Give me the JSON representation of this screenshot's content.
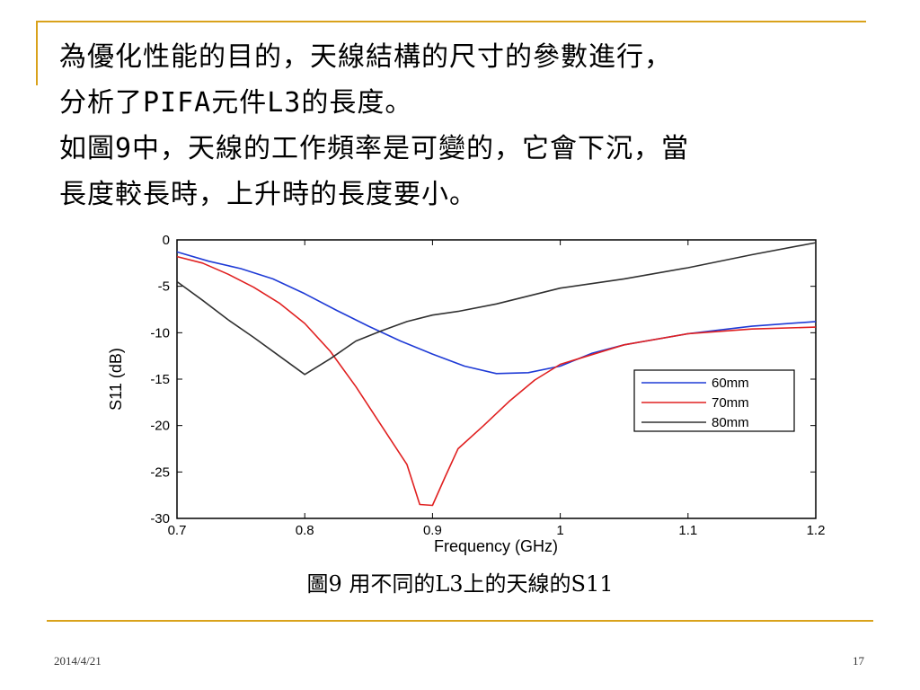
{
  "slide": {
    "lines": [
      "為優化性能的目的，天線結構的尺寸的參數進行，",
      "分析了PIFA元件L3的長度。",
      "如圖9中，天線的工作頻率是可變的，它會下沉，當",
      "長度較長時，上升時的長度要小。"
    ],
    "caption": "圖9 用不同的L3上的天線的S11",
    "date": "2014/4/21",
    "page_number": "17"
  },
  "colors": {
    "accent": "#d9a21b",
    "series_60": "#1f3bd6",
    "series_70": "#e02020",
    "series_80": "#303030"
  },
  "chart_data": {
    "type": "line",
    "xlabel": "Frequency (GHz)",
    "ylabel": "S11 (dB)",
    "xlim": [
      0.7,
      1.2
    ],
    "ylim": [
      -30,
      0
    ],
    "x_ticks": [
      0.7,
      0.8,
      0.9,
      1,
      1.1,
      1.2
    ],
    "x_tick_labels": [
      "0.7",
      "0.8",
      "0.9",
      "1",
      "1.1",
      "1.2"
    ],
    "y_ticks": [
      0,
      -5,
      -10,
      -15,
      -20,
      -25,
      -30
    ],
    "y_tick_labels": [
      "0",
      "-5",
      "-10",
      "-15",
      "-20",
      "-25",
      "-30"
    ],
    "legend_position": "right",
    "grid": false,
    "series": [
      {
        "name": "60mm",
        "x": [
          0.7,
          0.725,
          0.75,
          0.775,
          0.8,
          0.825,
          0.85,
          0.875,
          0.9,
          0.925,
          0.95,
          0.975,
          1.0,
          1.025,
          1.05,
          1.1,
          1.15,
          1.2
        ],
        "y": [
          -1.3,
          -2.3,
          -3.1,
          -4.2,
          -5.8,
          -7.6,
          -9.3,
          -10.9,
          -12.3,
          -13.6,
          -14.4,
          -14.3,
          -13.6,
          -12.2,
          -11.3,
          -10.1,
          -9.3,
          -8.8
        ]
      },
      {
        "name": "70mm",
        "x": [
          0.7,
          0.72,
          0.74,
          0.76,
          0.78,
          0.8,
          0.82,
          0.84,
          0.86,
          0.88,
          0.89,
          0.9,
          0.91,
          0.92,
          0.94,
          0.96,
          0.98,
          1.0,
          1.05,
          1.1,
          1.15,
          1.2
        ],
        "y": [
          -1.8,
          -2.5,
          -3.7,
          -5.1,
          -6.8,
          -9.0,
          -12.0,
          -15.8,
          -20.0,
          -24.2,
          -28.5,
          -28.6,
          -25.5,
          -22.5,
          -20.0,
          -17.4,
          -15.1,
          -13.4,
          -11.3,
          -10.1,
          -9.6,
          -9.4
        ]
      },
      {
        "name": "80mm",
        "x": [
          0.7,
          0.72,
          0.74,
          0.76,
          0.78,
          0.8,
          0.82,
          0.84,
          0.86,
          0.88,
          0.9,
          0.92,
          0.95,
          1.0,
          1.05,
          1.1,
          1.15,
          1.2
        ],
        "y": [
          -4.5,
          -6.5,
          -8.6,
          -10.5,
          -12.5,
          -14.5,
          -12.8,
          -10.9,
          -9.8,
          -8.8,
          -8.1,
          -7.7,
          -6.9,
          -5.2,
          -4.2,
          -3.0,
          -1.6,
          -0.3
        ]
      }
    ]
  }
}
